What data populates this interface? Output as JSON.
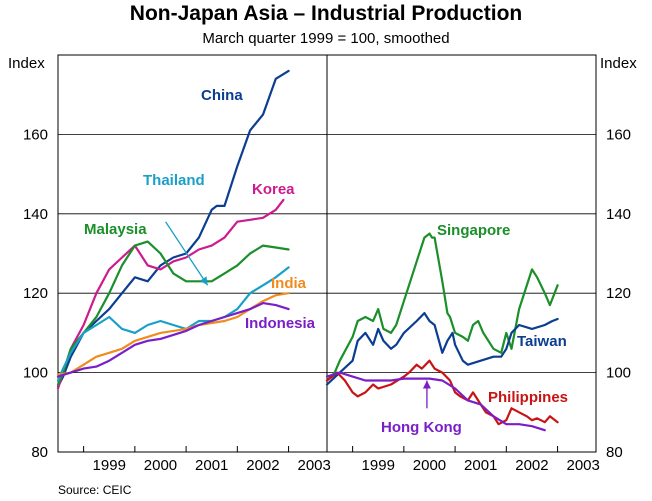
{
  "header": {
    "title": "Non-Japan Asia – Industrial Production",
    "subtitle": "March quarter 1999 = 100, smoothed"
  },
  "footer": {
    "source": "Source: CEIC"
  },
  "chart_data": [
    {
      "type": "line",
      "panel": "left",
      "ylabel": "Index",
      "ylim": [
        80,
        180
      ],
      "yticks": [
        80,
        100,
        120,
        140,
        160
      ],
      "xlim": [
        1998.5,
        2003.75
      ],
      "xticks": [
        "1999",
        "2000",
        "2001",
        "2002",
        "2003"
      ],
      "grid": true,
      "series": [
        {
          "name": "China",
          "label": "China",
          "color": "#0b3d91",
          "points": [
            [
              1998.5,
              96.5
            ],
            [
              1998.6,
              99
            ],
            [
              1998.75,
              104
            ],
            [
              1999.0,
              110
            ],
            [
              1999.25,
              113
            ],
            [
              1999.5,
              116
            ],
            [
              1999.75,
              120
            ],
            [
              2000.0,
              124
            ],
            [
              2000.25,
              123
            ],
            [
              2000.5,
              127
            ],
            [
              2000.75,
              129
            ],
            [
              2001.0,
              130
            ],
            [
              2001.25,
              134
            ],
            [
              2001.5,
              141
            ],
            [
              2001.6,
              142
            ],
            [
              2001.75,
              142
            ],
            [
              2002.0,
              152
            ],
            [
              2002.25,
              161
            ],
            [
              2002.5,
              165
            ],
            [
              2002.75,
              174
            ],
            [
              2003.0,
              176
            ]
          ]
        },
        {
          "name": "Korea",
          "label": "Korea",
          "color": "#cc1b8f",
          "points": [
            [
              1998.5,
              96
            ],
            [
              1998.6,
              100
            ],
            [
              1998.75,
              106
            ],
            [
              1999.0,
              112
            ],
            [
              1999.25,
              120
            ],
            [
              1999.5,
              126
            ],
            [
              1999.75,
              129
            ],
            [
              2000.0,
              132
            ],
            [
              2000.25,
              127
            ],
            [
              2000.5,
              126
            ],
            [
              2000.75,
              128
            ],
            [
              2001.0,
              129
            ],
            [
              2001.25,
              131
            ],
            [
              2001.5,
              132
            ],
            [
              2001.75,
              134
            ],
            [
              2002.0,
              138
            ],
            [
              2002.25,
              138.5
            ],
            [
              2002.5,
              139
            ],
            [
              2002.75,
              141
            ],
            [
              2002.9,
              143.5
            ]
          ]
        },
        {
          "name": "Malaysia",
          "label": "Malaysia",
          "color": "#1a8f2a",
          "points": [
            [
              1998.5,
              97
            ],
            [
              1998.6,
              100
            ],
            [
              1998.75,
              106
            ],
            [
              1999.0,
              110
            ],
            [
              1999.25,
              114
            ],
            [
              1999.5,
              120
            ],
            [
              1999.75,
              127
            ],
            [
              2000.0,
              132
            ],
            [
              2000.25,
              133
            ],
            [
              2000.5,
              130
            ],
            [
              2000.75,
              125
            ],
            [
              2001.0,
              123
            ],
            [
              2001.25,
              123
            ],
            [
              2001.5,
              123
            ],
            [
              2001.75,
              125
            ],
            [
              2002.0,
              127
            ],
            [
              2002.25,
              130
            ],
            [
              2002.5,
              132
            ],
            [
              2002.75,
              131.5
            ],
            [
              2003.0,
              131
            ]
          ]
        },
        {
          "name": "Thailand",
          "label": "Thailand",
          "color": "#1aa0c8",
          "points": [
            [
              1998.5,
              98
            ],
            [
              1998.6,
              101
            ],
            [
              1998.75,
              105
            ],
            [
              1999.0,
              110
            ],
            [
              1999.25,
              112
            ],
            [
              1999.5,
              114
            ],
            [
              1999.75,
              111
            ],
            [
              2000.0,
              110
            ],
            [
              2000.25,
              112
            ],
            [
              2000.5,
              113
            ],
            [
              2000.75,
              112
            ],
            [
              2001.0,
              111
            ],
            [
              2001.25,
              113
            ],
            [
              2001.5,
              113
            ],
            [
              2001.75,
              114
            ],
            [
              2002.0,
              116
            ],
            [
              2002.25,
              120
            ],
            [
              2002.5,
              122
            ],
            [
              2002.75,
              124
            ],
            [
              2003.0,
              126.5
            ]
          ]
        },
        {
          "name": "India",
          "label": "India",
          "color": "#f08c1e",
          "points": [
            [
              1998.5,
              99.5
            ],
            [
              1998.75,
              100
            ],
            [
              1999.0,
              102
            ],
            [
              1999.25,
              104
            ],
            [
              1999.5,
              105
            ],
            [
              1999.75,
              106
            ],
            [
              2000.0,
              108
            ],
            [
              2000.25,
              109
            ],
            [
              2000.5,
              110
            ],
            [
              2000.75,
              110.5
            ],
            [
              2001.0,
              111
            ],
            [
              2001.25,
              112
            ],
            [
              2001.5,
              112.5
            ],
            [
              2001.75,
              113
            ],
            [
              2002.0,
              114
            ],
            [
              2002.25,
              116
            ],
            [
              2002.5,
              118
            ],
            [
              2002.75,
              119.5
            ],
            [
              2003.0,
              120
            ]
          ]
        },
        {
          "name": "Indonesia",
          "label": "Indonesia",
          "color": "#7a1fc8",
          "points": [
            [
              1998.5,
              99
            ],
            [
              1998.75,
              100
            ],
            [
              1999.0,
              101
            ],
            [
              1999.25,
              101.5
            ],
            [
              1999.5,
              103
            ],
            [
              1999.75,
              105
            ],
            [
              2000.0,
              107
            ],
            [
              2000.25,
              108
            ],
            [
              2000.5,
              108.5
            ],
            [
              2000.75,
              109.5
            ],
            [
              2001.0,
              110.5
            ],
            [
              2001.25,
              112
            ],
            [
              2001.5,
              113
            ],
            [
              2001.75,
              114
            ],
            [
              2002.0,
              115
            ],
            [
              2002.25,
              116
            ],
            [
              2002.5,
              117.5
            ],
            [
              2002.75,
              117
            ],
            [
              2003.0,
              116
            ]
          ]
        }
      ],
      "annotations": [
        {
          "text": "Thailand → line arrow",
          "label_for": "Thailand",
          "from": [
            2000.6,
            138
          ],
          "to": [
            2001.42,
            122
          ]
        }
      ]
    },
    {
      "type": "line",
      "panel": "right",
      "ylabel": "Index",
      "ylim": [
        80,
        180
      ],
      "yticks": [
        80,
        100,
        120,
        140,
        160
      ],
      "xlim": [
        1998.5,
        2003.75
      ],
      "xticks": [
        "1999",
        "2000",
        "2001",
        "2002",
        "2003"
      ],
      "grid": true,
      "series": [
        {
          "name": "Singapore",
          "label": "Singapore",
          "color": "#1a8f2a",
          "points": [
            [
              1998.5,
              98
            ],
            [
              1998.65,
              100
            ],
            [
              1998.75,
              103
            ],
            [
              1999.0,
              109
            ],
            [
              1999.1,
              113
            ],
            [
              1999.25,
              114
            ],
            [
              1999.4,
              113
            ],
            [
              1999.5,
              116
            ],
            [
              1999.6,
              111
            ],
            [
              1999.75,
              110
            ],
            [
              1999.85,
              112
            ],
            [
              2000.0,
              118
            ],
            [
              2000.1,
              122
            ],
            [
              2000.25,
              128
            ],
            [
              2000.4,
              134
            ],
            [
              2000.5,
              135
            ],
            [
              2000.55,
              134
            ],
            [
              2000.6,
              134
            ],
            [
              2000.75,
              123
            ],
            [
              2000.85,
              115
            ],
            [
              2000.9,
              114
            ],
            [
              2001.0,
              110
            ],
            [
              2001.15,
              109
            ],
            [
              2001.25,
              108
            ],
            [
              2001.35,
              112
            ],
            [
              2001.45,
              113
            ],
            [
              2001.55,
              110
            ],
            [
              2001.75,
              106
            ],
            [
              2001.9,
              105
            ],
            [
              2002.0,
              110
            ],
            [
              2002.1,
              106
            ],
            [
              2002.25,
              116
            ],
            [
              2002.5,
              126
            ],
            [
              2002.6,
              124
            ],
            [
              2002.75,
              120
            ],
            [
              2002.85,
              117
            ],
            [
              2003.0,
              122
            ]
          ]
        },
        {
          "name": "Taiwan",
          "label": "Taiwan",
          "color": "#0b3d91",
          "points": [
            [
              1998.5,
              97
            ],
            [
              1998.75,
              100
            ],
            [
              1999.0,
              103
            ],
            [
              1999.1,
              108
            ],
            [
              1999.25,
              110
            ],
            [
              1999.4,
              107
            ],
            [
              1999.5,
              111
            ],
            [
              1999.6,
              108
            ],
            [
              1999.75,
              106
            ],
            [
              1999.85,
              107
            ],
            [
              2000.0,
              110
            ],
            [
              2000.25,
              113
            ],
            [
              2000.4,
              115
            ],
            [
              2000.5,
              113
            ],
            [
              2000.6,
              112
            ],
            [
              2000.75,
              105
            ],
            [
              2000.85,
              108
            ],
            [
              2000.95,
              110
            ],
            [
              2001.0,
              107
            ],
            [
              2001.15,
              103
            ],
            [
              2001.25,
              102
            ],
            [
              2001.5,
              103
            ],
            [
              2001.75,
              104
            ],
            [
              2001.9,
              104
            ],
            [
              2002.0,
              106
            ],
            [
              2002.1,
              110
            ],
            [
              2002.25,
              112
            ],
            [
              2002.5,
              111
            ],
            [
              2002.75,
              112
            ],
            [
              2002.9,
              113
            ],
            [
              2003.0,
              113.5
            ]
          ]
        },
        {
          "name": "Philippines",
          "label": "Philippines",
          "color": "#c81414",
          "points": [
            [
              1998.5,
              98
            ],
            [
              1998.7,
              100
            ],
            [
              1998.85,
              98
            ],
            [
              1999.0,
              95
            ],
            [
              1999.1,
              94
            ],
            [
              1999.25,
              95
            ],
            [
              1999.4,
              97
            ],
            [
              1999.5,
              96
            ],
            [
              1999.75,
              97
            ],
            [
              2000.0,
              99
            ],
            [
              2000.1,
              100
            ],
            [
              2000.25,
              102
            ],
            [
              2000.35,
              101
            ],
            [
              2000.5,
              103
            ],
            [
              2000.6,
              101
            ],
            [
              2000.75,
              100
            ],
            [
              2000.9,
              98
            ],
            [
              2001.0,
              95
            ],
            [
              2001.1,
              94
            ],
            [
              2001.25,
              93
            ],
            [
              2001.35,
              95
            ],
            [
              2001.5,
              92
            ],
            [
              2001.6,
              90
            ],
            [
              2001.75,
              89
            ],
            [
              2001.85,
              87
            ],
            [
              2002.0,
              88
            ],
            [
              2002.1,
              91
            ],
            [
              2002.25,
              90
            ],
            [
              2002.4,
              89
            ],
            [
              2002.5,
              88
            ],
            [
              2002.6,
              88.5
            ],
            [
              2002.75,
              87.5
            ],
            [
              2002.85,
              89
            ],
            [
              2003.0,
              87.5
            ]
          ]
        },
        {
          "name": "Hong Kong",
          "label": "Hong Kong",
          "color": "#7a1fc8",
          "points": [
            [
              1998.5,
              99
            ],
            [
              1998.75,
              100
            ],
            [
              1999.0,
              99
            ],
            [
              1999.25,
              98
            ],
            [
              1999.5,
              98
            ],
            [
              1999.75,
              98
            ],
            [
              2000.0,
              98.5
            ],
            [
              2000.25,
              98.5
            ],
            [
              2000.5,
              98.5
            ],
            [
              2000.75,
              98
            ],
            [
              2001.0,
              96
            ],
            [
              2001.25,
              93
            ],
            [
              2001.5,
              92
            ],
            [
              2001.75,
              89
            ],
            [
              2002.0,
              87
            ],
            [
              2002.25,
              87
            ],
            [
              2002.5,
              86.5
            ],
            [
              2002.75,
              85.5
            ]
          ]
        }
      ],
      "annotations": [
        {
          "text": "Hong Kong → line arrow",
          "label_for": "Hong Kong",
          "from": [
            2000.45,
            91
          ],
          "to": [
            2000.45,
            98
          ]
        }
      ]
    }
  ]
}
